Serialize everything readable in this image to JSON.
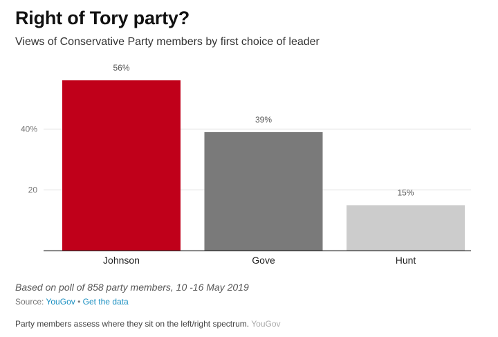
{
  "header": {
    "title": "Right of Tory party?",
    "subtitle": "Views of Conservative Party members by first choice of leader"
  },
  "chart_data": {
    "type": "bar",
    "categories": [
      "Johnson",
      "Gove",
      "Hunt"
    ],
    "values": [
      56,
      39,
      15
    ],
    "data_labels": [
      "56%",
      "39%",
      "15%"
    ],
    "colors": [
      "#c0001a",
      "#7a7a7a",
      "#cccccc"
    ],
    "ylim": [
      0,
      60
    ],
    "yticks": [
      20,
      40
    ],
    "ytick_labels": [
      "20",
      "40%"
    ],
    "grid": true
  },
  "footer": {
    "note": "Based on poll of 858 party members, 10 -16 May 2019",
    "source_prefix": "Source: ",
    "source_link": "YouGov",
    "separator": " • ",
    "data_link": "Get the data",
    "caption": "Party members assess where they sit on the left/right spectrum. ",
    "credit": "YouGov"
  }
}
